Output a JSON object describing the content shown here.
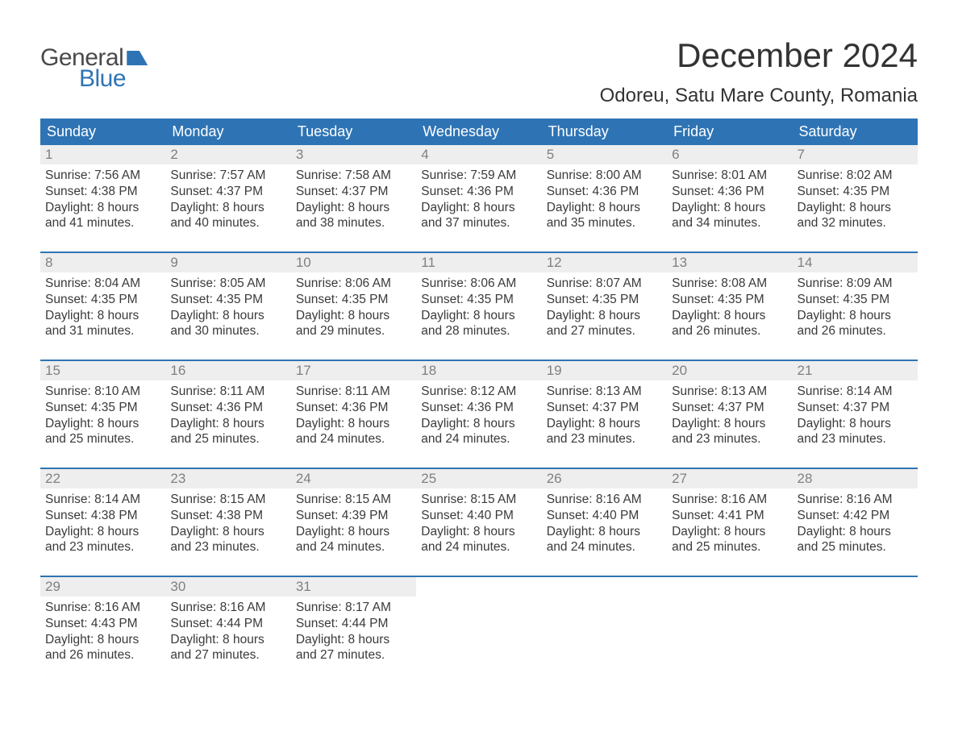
{
  "brand": {
    "word1": "General",
    "word2": "Blue"
  },
  "title": "December 2024",
  "location": "Odoreu, Satu Mare County, Romania",
  "colors": {
    "header_bg": "#2e74b5",
    "header_text": "#ffffff",
    "daynum_bg": "#eeeeee",
    "daynum_text": "#808080",
    "body_text": "#3a3a3a",
    "page_bg": "#ffffff",
    "week_border": "#2e74b5"
  },
  "typography": {
    "title_fontsize": 42,
    "location_fontsize": 24,
    "dayheader_fontsize": 18,
    "daynum_fontsize": 17,
    "cell_fontsize": 15.5,
    "logo_fontsize": 30
  },
  "layout": {
    "columns": 7,
    "rows": 5
  },
  "day_headers": [
    "Sunday",
    "Monday",
    "Tuesday",
    "Wednesday",
    "Thursday",
    "Friday",
    "Saturday"
  ],
  "weeks": [
    [
      {
        "n": "1",
        "sr": "Sunrise: 7:56 AM",
        "ss": "Sunset: 4:38 PM",
        "d1": "Daylight: 8 hours",
        "d2": "and 41 minutes."
      },
      {
        "n": "2",
        "sr": "Sunrise: 7:57 AM",
        "ss": "Sunset: 4:37 PM",
        "d1": "Daylight: 8 hours",
        "d2": "and 40 minutes."
      },
      {
        "n": "3",
        "sr": "Sunrise: 7:58 AM",
        "ss": "Sunset: 4:37 PM",
        "d1": "Daylight: 8 hours",
        "d2": "and 38 minutes."
      },
      {
        "n": "4",
        "sr": "Sunrise: 7:59 AM",
        "ss": "Sunset: 4:36 PM",
        "d1": "Daylight: 8 hours",
        "d2": "and 37 minutes."
      },
      {
        "n": "5",
        "sr": "Sunrise: 8:00 AM",
        "ss": "Sunset: 4:36 PM",
        "d1": "Daylight: 8 hours",
        "d2": "and 35 minutes."
      },
      {
        "n": "6",
        "sr": "Sunrise: 8:01 AM",
        "ss": "Sunset: 4:36 PM",
        "d1": "Daylight: 8 hours",
        "d2": "and 34 minutes."
      },
      {
        "n": "7",
        "sr": "Sunrise: 8:02 AM",
        "ss": "Sunset: 4:35 PM",
        "d1": "Daylight: 8 hours",
        "d2": "and 32 minutes."
      }
    ],
    [
      {
        "n": "8",
        "sr": "Sunrise: 8:04 AM",
        "ss": "Sunset: 4:35 PM",
        "d1": "Daylight: 8 hours",
        "d2": "and 31 minutes."
      },
      {
        "n": "9",
        "sr": "Sunrise: 8:05 AM",
        "ss": "Sunset: 4:35 PM",
        "d1": "Daylight: 8 hours",
        "d2": "and 30 minutes."
      },
      {
        "n": "10",
        "sr": "Sunrise: 8:06 AM",
        "ss": "Sunset: 4:35 PM",
        "d1": "Daylight: 8 hours",
        "d2": "and 29 minutes."
      },
      {
        "n": "11",
        "sr": "Sunrise: 8:06 AM",
        "ss": "Sunset: 4:35 PM",
        "d1": "Daylight: 8 hours",
        "d2": "and 28 minutes."
      },
      {
        "n": "12",
        "sr": "Sunrise: 8:07 AM",
        "ss": "Sunset: 4:35 PM",
        "d1": "Daylight: 8 hours",
        "d2": "and 27 minutes."
      },
      {
        "n": "13",
        "sr": "Sunrise: 8:08 AM",
        "ss": "Sunset: 4:35 PM",
        "d1": "Daylight: 8 hours",
        "d2": "and 26 minutes."
      },
      {
        "n": "14",
        "sr": "Sunrise: 8:09 AM",
        "ss": "Sunset: 4:35 PM",
        "d1": "Daylight: 8 hours",
        "d2": "and 26 minutes."
      }
    ],
    [
      {
        "n": "15",
        "sr": "Sunrise: 8:10 AM",
        "ss": "Sunset: 4:35 PM",
        "d1": "Daylight: 8 hours",
        "d2": "and 25 minutes."
      },
      {
        "n": "16",
        "sr": "Sunrise: 8:11 AM",
        "ss": "Sunset: 4:36 PM",
        "d1": "Daylight: 8 hours",
        "d2": "and 25 minutes."
      },
      {
        "n": "17",
        "sr": "Sunrise: 8:11 AM",
        "ss": "Sunset: 4:36 PM",
        "d1": "Daylight: 8 hours",
        "d2": "and 24 minutes."
      },
      {
        "n": "18",
        "sr": "Sunrise: 8:12 AM",
        "ss": "Sunset: 4:36 PM",
        "d1": "Daylight: 8 hours",
        "d2": "and 24 minutes."
      },
      {
        "n": "19",
        "sr": "Sunrise: 8:13 AM",
        "ss": "Sunset: 4:37 PM",
        "d1": "Daylight: 8 hours",
        "d2": "and 23 minutes."
      },
      {
        "n": "20",
        "sr": "Sunrise: 8:13 AM",
        "ss": "Sunset: 4:37 PM",
        "d1": "Daylight: 8 hours",
        "d2": "and 23 minutes."
      },
      {
        "n": "21",
        "sr": "Sunrise: 8:14 AM",
        "ss": "Sunset: 4:37 PM",
        "d1": "Daylight: 8 hours",
        "d2": "and 23 minutes."
      }
    ],
    [
      {
        "n": "22",
        "sr": "Sunrise: 8:14 AM",
        "ss": "Sunset: 4:38 PM",
        "d1": "Daylight: 8 hours",
        "d2": "and 23 minutes."
      },
      {
        "n": "23",
        "sr": "Sunrise: 8:15 AM",
        "ss": "Sunset: 4:38 PM",
        "d1": "Daylight: 8 hours",
        "d2": "and 23 minutes."
      },
      {
        "n": "24",
        "sr": "Sunrise: 8:15 AM",
        "ss": "Sunset: 4:39 PM",
        "d1": "Daylight: 8 hours",
        "d2": "and 24 minutes."
      },
      {
        "n": "25",
        "sr": "Sunrise: 8:15 AM",
        "ss": "Sunset: 4:40 PM",
        "d1": "Daylight: 8 hours",
        "d2": "and 24 minutes."
      },
      {
        "n": "26",
        "sr": "Sunrise: 8:16 AM",
        "ss": "Sunset: 4:40 PM",
        "d1": "Daylight: 8 hours",
        "d2": "and 24 minutes."
      },
      {
        "n": "27",
        "sr": "Sunrise: 8:16 AM",
        "ss": "Sunset: 4:41 PM",
        "d1": "Daylight: 8 hours",
        "d2": "and 25 minutes."
      },
      {
        "n": "28",
        "sr": "Sunrise: 8:16 AM",
        "ss": "Sunset: 4:42 PM",
        "d1": "Daylight: 8 hours",
        "d2": "and 25 minutes."
      }
    ],
    [
      {
        "n": "29",
        "sr": "Sunrise: 8:16 AM",
        "ss": "Sunset: 4:43 PM",
        "d1": "Daylight: 8 hours",
        "d2": "and 26 minutes."
      },
      {
        "n": "30",
        "sr": "Sunrise: 8:16 AM",
        "ss": "Sunset: 4:44 PM",
        "d1": "Daylight: 8 hours",
        "d2": "and 27 minutes."
      },
      {
        "n": "31",
        "sr": "Sunrise: 8:17 AM",
        "ss": "Sunset: 4:44 PM",
        "d1": "Daylight: 8 hours",
        "d2": "and 27 minutes."
      },
      null,
      null,
      null,
      null
    ]
  ]
}
